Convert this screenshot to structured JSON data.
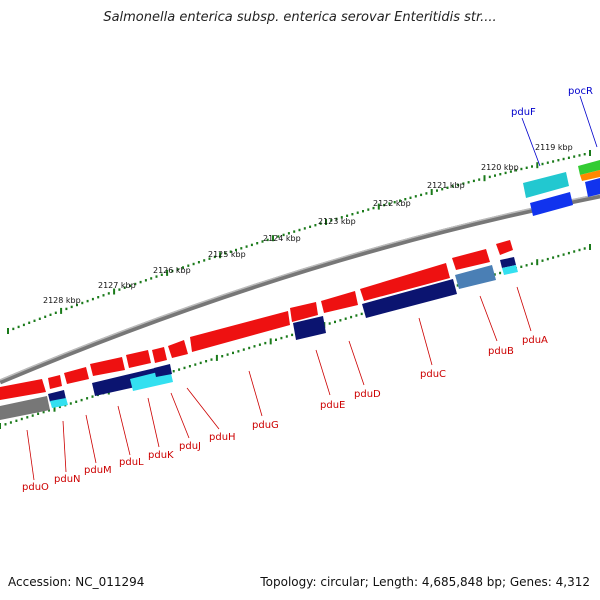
{
  "title": "Salmonella enterica subsp. enterica serovar Enteritidis str....",
  "footer": {
    "accession": "Accession: NC_011294",
    "summary": "Topology: circular; Length: 4,685,848 bp; Genes: 4,312"
  },
  "colors": {
    "forward_gene": "#ee1111",
    "reverse_gene": "#0b1470",
    "backbone": "#888888",
    "tick": "#1a7a1a",
    "label_red": "#cc0000",
    "label_blue": "#0000cc"
  },
  "kbp_labels": [
    "2119 kbp",
    "2120 kbp",
    "2121 kbp",
    "2122 kbp",
    "2123 kbp",
    "2124 kbp",
    "2125 kbp",
    "2126 kbp",
    "2127 kbp",
    "2128 kbp"
  ],
  "gene_labels_red": [
    "pduA",
    "pduB",
    "pduC",
    "pduD",
    "pduE",
    "pduG",
    "pduH",
    "pduJ",
    "pduK",
    "pduL",
    "pduM",
    "pduN",
    "pduO"
  ],
  "gene_labels_blue": [
    "pduF",
    "pocR"
  ]
}
